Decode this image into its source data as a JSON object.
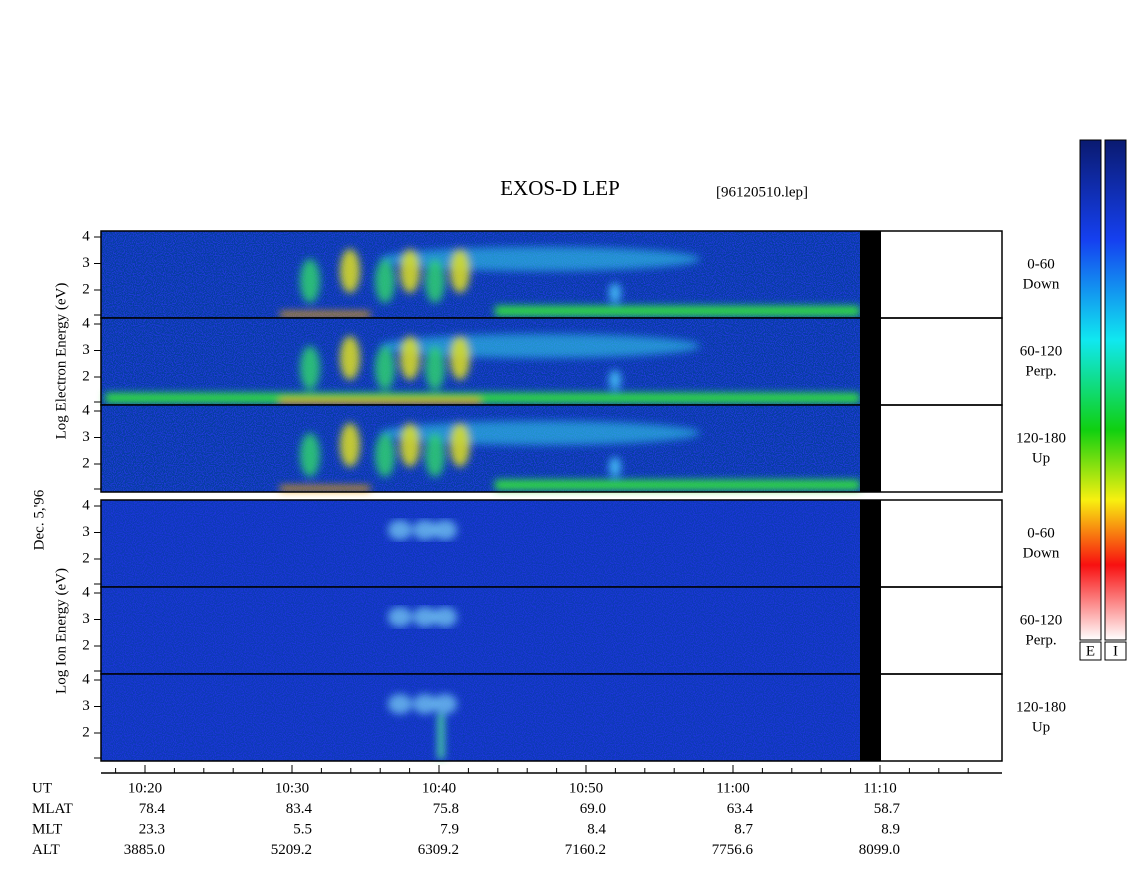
{
  "title": "EXOS-D LEP",
  "file": "[96120510.lep]",
  "date_label": "Dec. 5,'96",
  "electron": {
    "ylabel": "Log  Electron  Energy (eV)",
    "panels": [
      {
        "angle": "0-60",
        "dir": "Down",
        "ticks": [
          "4",
          "3",
          "2"
        ]
      },
      {
        "angle": "60-120",
        "dir": "Perp.",
        "ticks": [
          "4",
          "3",
          "2"
        ]
      },
      {
        "angle": "120-180",
        "dir": "Up",
        "ticks": [
          "4",
          "3",
          "2"
        ]
      }
    ]
  },
  "ion": {
    "ylabel": "Log  Ion  Energy (eV)",
    "panels": [
      {
        "angle": "0-60",
        "dir": "Down",
        "ticks": [
          "4",
          "3",
          "2"
        ]
      },
      {
        "angle": "60-120",
        "dir": "Perp.",
        "ticks": [
          "4",
          "3",
          "2"
        ]
      },
      {
        "angle": "120-180",
        "dir": "Up",
        "ticks": [
          "4",
          "3",
          "2"
        ]
      }
    ]
  },
  "time_ticks": [
    "10:20",
    "10:30",
    "10:40",
    "10:50",
    "11:00",
    "11:10"
  ],
  "ephemeris": [
    {
      "label": "UT"
    },
    {
      "label": "MLAT",
      "values": [
        "78.4",
        "83.4",
        "75.8",
        "69.0",
        "63.4",
        "58.7"
      ]
    },
    {
      "label": "MLT",
      "values": [
        "23.3",
        "5.5",
        "7.9",
        "8.4",
        "8.7",
        "8.9"
      ]
    },
    {
      "label": "ALT",
      "values": [
        "3885.0",
        "5209.2",
        "6309.2",
        "7160.2",
        "7756.6",
        "8099.0"
      ]
    }
  ],
  "colorbars": [
    "E",
    "I"
  ]
}
